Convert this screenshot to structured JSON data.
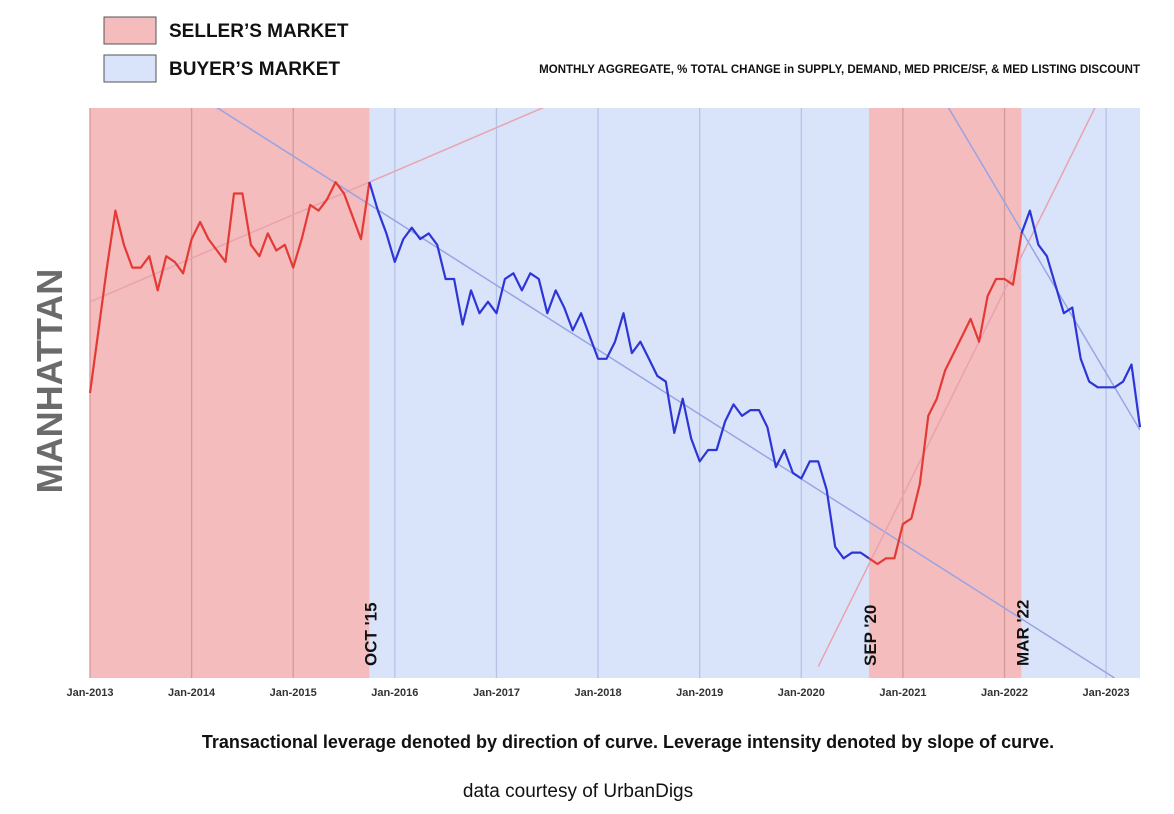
{
  "legend": {
    "seller_label": "SELLER’S MARKET",
    "buyer_label": "BUYER’S MARKET",
    "seller_color": "#f4bcbc",
    "buyer_color": "#d9e4fb"
  },
  "subtitle": "MONTHLY AGGREGATE, % TOTAL CHANGE in SUPPLY, DEMAND, MED PRICE/SF, & MED LISTING DISCOUNT",
  "ylabel": "MANHATTAN",
  "caption": "Transactional leverage denoted by direction of curve.  Leverage intensity denoted by slope of curve.",
  "credit": "data courtesy of UrbanDigs",
  "chart_data": {
    "type": "line",
    "x_unit": "month",
    "xlim": [
      "Jan-2013",
      "May-2023"
    ],
    "ylim": [
      0,
      100
    ],
    "tick_labels": [
      "Jan-2013",
      "Jan-2014",
      "Jan-2015",
      "Jan-2016",
      "Jan-2017",
      "Jan-2018",
      "Jan-2019",
      "Jan-2020",
      "Jan-2021",
      "Jan-2022",
      "Jan-2023"
    ],
    "grid": "vertical",
    "series_colors": {
      "seller": "#e53935",
      "buyer": "#2e35d6"
    },
    "regions": [
      {
        "market": "seller",
        "start": "Jan-2013",
        "end": "Oct-2015"
      },
      {
        "market": "buyer",
        "start": "Oct-2015",
        "end": "Sep-2020"
      },
      {
        "market": "seller",
        "start": "Sep-2020",
        "end": "Mar-2022"
      },
      {
        "market": "buyer",
        "start": "Mar-2022",
        "end": "May-2023"
      }
    ],
    "annotations": [
      {
        "text": "OCT '15",
        "at": "Oct-2015"
      },
      {
        "text": "SEP '20",
        "at": "Sep-2020"
      },
      {
        "text": "MAR '22",
        "at": "Mar-2022"
      }
    ],
    "trendlines": [
      {
        "market": "seller",
        "from": {
          "x": "Jan-2013",
          "y": 66
        },
        "to": {
          "x": "Aug-2017",
          "y": 101
        }
      },
      {
        "market": "buyer",
        "from": {
          "x": "Mar-2014",
          "y": 101
        },
        "to": {
          "x": "Feb-2023",
          "y": 0
        }
      },
      {
        "market": "seller",
        "from": {
          "x": "Mar-2020",
          "y": 2
        },
        "to": {
          "x": "Dec-2022",
          "y": 101
        }
      },
      {
        "market": "buyer",
        "from": {
          "x": "Jun-2021",
          "y": 101
        },
        "to": {
          "x": "May-2023",
          "y": 43.5
        }
      }
    ],
    "x": [
      "Jan-2013",
      "Feb-2013",
      "Mar-2013",
      "Apr-2013",
      "May-2013",
      "Jun-2013",
      "Jul-2013",
      "Aug-2013",
      "Sep-2013",
      "Oct-2013",
      "Nov-2013",
      "Dec-2013",
      "Jan-2014",
      "Feb-2014",
      "Mar-2014",
      "Apr-2014",
      "May-2014",
      "Jun-2014",
      "Jul-2014",
      "Aug-2014",
      "Sep-2014",
      "Oct-2014",
      "Nov-2014",
      "Dec-2014",
      "Jan-2015",
      "Feb-2015",
      "Mar-2015",
      "Apr-2015",
      "May-2015",
      "Jun-2015",
      "Jul-2015",
      "Aug-2015",
      "Sep-2015",
      "Oct-2015",
      "Nov-2015",
      "Dec-2015",
      "Jan-2016",
      "Feb-2016",
      "Mar-2016",
      "Apr-2016",
      "May-2016",
      "Jun-2016",
      "Jul-2016",
      "Aug-2016",
      "Sep-2016",
      "Oct-2016",
      "Nov-2016",
      "Dec-2016",
      "Jan-2017",
      "Feb-2017",
      "Mar-2017",
      "Apr-2017",
      "May-2017",
      "Jun-2017",
      "Jul-2017",
      "Aug-2017",
      "Sep-2017",
      "Oct-2017",
      "Nov-2017",
      "Dec-2017",
      "Jan-2018",
      "Feb-2018",
      "Mar-2018",
      "Apr-2018",
      "May-2018",
      "Jun-2018",
      "Jul-2018",
      "Aug-2018",
      "Sep-2018",
      "Oct-2018",
      "Nov-2018",
      "Dec-2018",
      "Jan-2019",
      "Feb-2019",
      "Mar-2019",
      "Apr-2019",
      "May-2019",
      "Jun-2019",
      "Jul-2019",
      "Aug-2019",
      "Sep-2019",
      "Oct-2019",
      "Nov-2019",
      "Dec-2019",
      "Jan-2020",
      "Feb-2020",
      "Mar-2020",
      "Apr-2020",
      "May-2020",
      "Jun-2020",
      "Jul-2020",
      "Aug-2020",
      "Sep-2020",
      "Oct-2020",
      "Nov-2020",
      "Dec-2020",
      "Jan-2021",
      "Feb-2021",
      "Mar-2021",
      "Apr-2021",
      "May-2021",
      "Jun-2021",
      "Jul-2021",
      "Aug-2021",
      "Sep-2021",
      "Oct-2021",
      "Nov-2021",
      "Dec-2021",
      "Jan-2022",
      "Feb-2022",
      "Mar-2022",
      "Apr-2022",
      "May-2022",
      "Jun-2022",
      "Jul-2022",
      "Aug-2022",
      "Sep-2022",
      "Oct-2022",
      "Nov-2022",
      "Dec-2022",
      "Jan-2023",
      "Feb-2023",
      "Mar-2023",
      "Apr-2023",
      "May-2023"
    ],
    "y": [
      50,
      61,
      72,
      82,
      76,
      72,
      72,
      74,
      68,
      74,
      73,
      71,
      77,
      80,
      77,
      75,
      73,
      85,
      85,
      76,
      74,
      78,
      75,
      76,
      72,
      77,
      83,
      82,
      84,
      87,
      85,
      81,
      77,
      87,
      82,
      78,
      73,
      77,
      79,
      77,
      78,
      76,
      70,
      70,
      62,
      68,
      64,
      66,
      64,
      70,
      71,
      68,
      71,
      70,
      64,
      68,
      65,
      61,
      64,
      60,
      56,
      56,
      59,
      64,
      57,
      59,
      56,
      53,
      52,
      43,
      49,
      42,
      38,
      40,
      40,
      45,
      48,
      46,
      47,
      47,
      44,
      37,
      40,
      36,
      35,
      38,
      38,
      33,
      23,
      21,
      22,
      22,
      21,
      20,
      21,
      21,
      27,
      28,
      34,
      46,
      49,
      54,
      57,
      60,
      63,
      59,
      67,
      70,
      70,
      69,
      78,
      82,
      76,
      74,
      69,
      64,
      65,
      56,
      52,
      51,
      51,
      51,
      52,
      55,
      44
    ]
  }
}
